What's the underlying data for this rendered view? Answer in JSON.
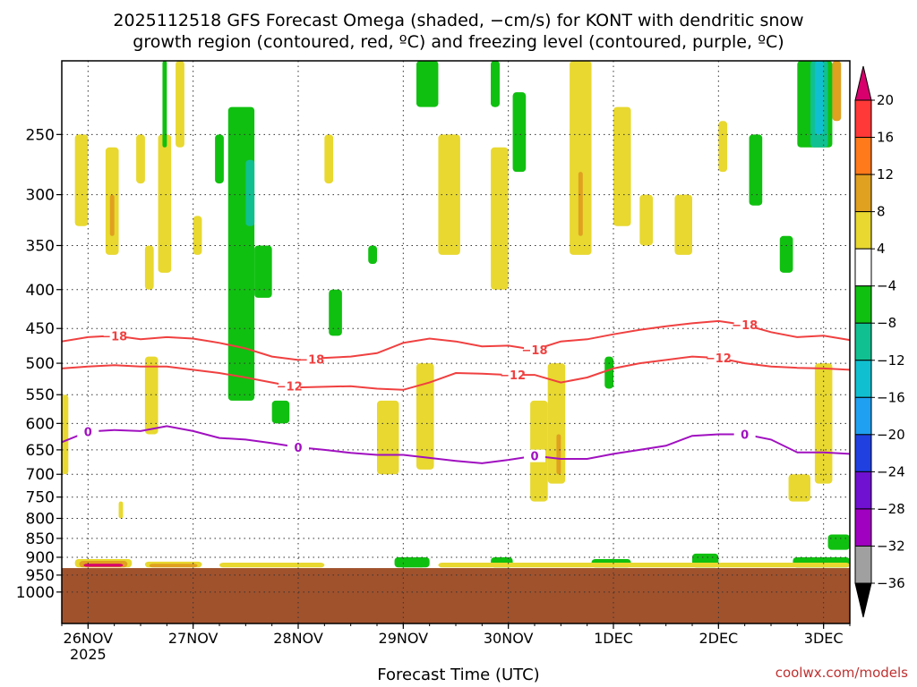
{
  "title_line1": "2025112518 GFS Forecast Omega (shaded, −cm/s) for KONT with dendritic snow",
  "title_line2": "growth region (contoured, red, ºC) and freezing level (contoured, purple, ºC)",
  "credit": "coolwx.com/models",
  "chart_data": {
    "type": "heatmap",
    "xlabel": "Forecast Time (UTC)",
    "x_ticks": [
      {
        "label": "26NOV",
        "sub": "2025",
        "hours": 6
      },
      {
        "label": "27NOV",
        "sub": "",
        "hours": 30
      },
      {
        "label": "28NOV",
        "sub": "",
        "hours": 54
      },
      {
        "label": "29NOV",
        "sub": "",
        "hours": 78
      },
      {
        "label": "30NOV",
        "sub": "",
        "hours": 102
      },
      {
        "label": "1DEC",
        "sub": "",
        "hours": 126
      },
      {
        "label": "2DEC",
        "sub": "",
        "hours": 150
      },
      {
        "label": "3DEC",
        "sub": "",
        "hours": 174
      }
    ],
    "x_range_hours": [
      0,
      180
    ],
    "y_scale": "log-pressure",
    "y_range": [
      1100,
      200
    ],
    "y_ticks": [
      250,
      300,
      350,
      400,
      450,
      500,
      550,
      600,
      650,
      700,
      750,
      800,
      850,
      900,
      950,
      1000
    ],
    "y_tick_labels": [
      "250",
      "300",
      "350",
      "400",
      "450",
      "500",
      "550",
      "600",
      "650",
      "700",
      "750",
      "800",
      "850",
      "900",
      "950",
      "1000"
    ],
    "surface_pressure": 930,
    "colorbar": {
      "labels": [
        "20",
        "16",
        "12",
        "8",
        "4",
        "−4",
        "−8",
        "−12",
        "−16",
        "−20",
        "−24",
        "−28",
        "−32",
        "−36"
      ],
      "colors": [
        "#d8006c",
        "#ff3838",
        "#ff7a1a",
        "#e0a020",
        "#e8d830",
        "#ffffff",
        "#10c010",
        "#10c090",
        "#10c0d0",
        "#20a0f0",
        "#2040e0",
        "#7010d0",
        "#a000c0",
        "#a0a0a0",
        "#000000"
      ]
    },
    "contours": [
      {
        "label": "-18",
        "color": "#f04040",
        "points": [
          [
            0,
            468
          ],
          [
            6,
            462
          ],
          [
            12,
            460
          ],
          [
            18,
            465
          ],
          [
            24,
            462
          ],
          [
            30,
            464
          ],
          [
            36,
            470
          ],
          [
            42,
            478
          ],
          [
            48,
            490
          ],
          [
            54,
            495
          ],
          [
            60,
            492
          ],
          [
            66,
            490
          ],
          [
            72,
            485
          ],
          [
            78,
            470
          ],
          [
            84,
            464
          ],
          [
            90,
            468
          ],
          [
            96,
            475
          ],
          [
            102,
            474
          ],
          [
            108,
            480
          ],
          [
            114,
            468
          ],
          [
            120,
            465
          ],
          [
            126,
            458
          ],
          [
            132,
            452
          ],
          [
            138,
            447
          ],
          [
            144,
            443
          ],
          [
            150,
            440
          ],
          [
            156,
            445
          ],
          [
            162,
            455
          ],
          [
            168,
            462
          ],
          [
            174,
            460
          ],
          [
            180,
            466
          ]
        ],
        "labels_at": [
          12,
          57,
          108,
          156
        ]
      },
      {
        "label": "-12",
        "color": "#f04040",
        "points": [
          [
            0,
            508
          ],
          [
            6,
            505
          ],
          [
            12,
            503
          ],
          [
            18,
            505
          ],
          [
            24,
            505
          ],
          [
            30,
            510
          ],
          [
            36,
            515
          ],
          [
            42,
            522
          ],
          [
            48,
            530
          ],
          [
            54,
            538
          ],
          [
            60,
            537
          ],
          [
            66,
            536
          ],
          [
            72,
            540
          ],
          [
            78,
            542
          ],
          [
            84,
            530
          ],
          [
            90,
            515
          ],
          [
            96,
            516
          ],
          [
            102,
            518
          ],
          [
            108,
            518
          ],
          [
            114,
            530
          ],
          [
            120,
            522
          ],
          [
            126,
            508
          ],
          [
            132,
            500
          ],
          [
            138,
            495
          ],
          [
            144,
            490
          ],
          [
            150,
            492
          ],
          [
            156,
            500
          ],
          [
            162,
            505
          ],
          [
            168,
            507
          ],
          [
            174,
            508
          ],
          [
            180,
            510
          ]
        ],
        "labels_at": [
          52,
          103,
          150
        ]
      },
      {
        "label": "0",
        "color": "#a010c0",
        "points": [
          [
            0,
            635
          ],
          [
            6,
            615
          ],
          [
            12,
            612
          ],
          [
            18,
            614
          ],
          [
            24,
            605
          ],
          [
            30,
            614
          ],
          [
            36,
            627
          ],
          [
            42,
            630
          ],
          [
            48,
            637
          ],
          [
            54,
            645
          ],
          [
            60,
            650
          ],
          [
            66,
            656
          ],
          [
            72,
            660
          ],
          [
            78,
            660
          ],
          [
            84,
            666
          ],
          [
            90,
            672
          ],
          [
            96,
            677
          ],
          [
            102,
            670
          ],
          [
            108,
            662
          ],
          [
            114,
            668
          ],
          [
            120,
            668
          ],
          [
            126,
            658
          ],
          [
            132,
            650
          ],
          [
            138,
            642
          ],
          [
            144,
            623
          ],
          [
            150,
            620
          ],
          [
            156,
            620
          ],
          [
            162,
            630
          ],
          [
            168,
            655
          ],
          [
            174,
            655
          ],
          [
            180,
            658
          ]
        ],
        "labels_at": [
          6,
          54,
          108,
          156
        ]
      }
    ],
    "omega_regions": [
      {
        "value": "4",
        "x": [
          0,
          1.5
        ],
        "p": [
          550,
          700
        ]
      },
      {
        "value": "4",
        "x": [
          3,
          6
        ],
        "p": [
          250,
          330
        ]
      },
      {
        "value": "4",
        "x": [
          10,
          13
        ],
        "p": [
          260,
          360
        ]
      },
      {
        "value": "4",
        "x": [
          17,
          19
        ],
        "p": [
          250,
          290
        ]
      },
      {
        "value": "4",
        "x": [
          19,
          21
        ],
        "p": [
          350,
          400
        ]
      },
      {
        "value": "4",
        "x": [
          13,
          14
        ],
        "p": [
          760,
          800
        ]
      },
      {
        "value": "4",
        "x": [
          19,
          22
        ],
        "p": [
          490,
          620
        ]
      },
      {
        "value": "4",
        "x": [
          22,
          25
        ],
        "p": [
          250,
          380
        ]
      },
      {
        "value": "4",
        "x": [
          26,
          28
        ],
        "p": [
          200,
          260
        ]
      },
      {
        "value": "4",
        "x": [
          30,
          32
        ],
        "p": [
          320,
          360
        ]
      },
      {
        "value": "8",
        "x": [
          11,
          12
        ],
        "p": [
          300,
          340
        ]
      },
      {
        "value": "-4",
        "x": [
          23,
          24
        ],
        "p": [
          200,
          260
        ]
      },
      {
        "value": "-4",
        "x": [
          35,
          37
        ],
        "p": [
          250,
          290
        ]
      },
      {
        "value": "-4",
        "x": [
          38,
          44
        ],
        "p": [
          230,
          560
        ]
      },
      {
        "value": "-8",
        "x": [
          44,
          48
        ],
        "p": [
          350,
          410
        ]
      },
      {
        "value": "-12",
        "x": [
          42,
          44
        ],
        "p": [
          270,
          330
        ]
      },
      {
        "value": "-4",
        "x": [
          48,
          52
        ],
        "p": [
          560,
          600
        ]
      },
      {
        "value": "4",
        "x": [
          60,
          62
        ],
        "p": [
          250,
          290
        ]
      },
      {
        "value": "-4",
        "x": [
          61,
          64
        ],
        "p": [
          400,
          460
        ]
      },
      {
        "value": "-4",
        "x": [
          70,
          72
        ],
        "p": [
          350,
          370
        ]
      },
      {
        "value": "4",
        "x": [
          72,
          77
        ],
        "p": [
          560,
          700
        ]
      },
      {
        "value": "4",
        "x": [
          81,
          85
        ],
        "p": [
          500,
          690
        ]
      },
      {
        "value": "-4",
        "x": [
          81,
          86
        ],
        "p": [
          200,
          230
        ]
      },
      {
        "value": "4",
        "x": [
          86,
          91
        ],
        "p": [
          250,
          360
        ]
      },
      {
        "value": "-4",
        "x": [
          98,
          100
        ],
        "p": [
          200,
          230
        ]
      },
      {
        "value": "-8",
        "x": [
          98,
          100
        ],
        "p": [
          200,
          230
        ]
      },
      {
        "value": "4",
        "x": [
          98,
          102
        ],
        "p": [
          260,
          400
        ]
      },
      {
        "value": "-4",
        "x": [
          103,
          106
        ],
        "p": [
          220,
          280
        ]
      },
      {
        "value": "4",
        "x": [
          107,
          111
        ],
        "p": [
          560,
          760
        ]
      },
      {
        "value": "4",
        "x": [
          111,
          115
        ],
        "p": [
          500,
          720
        ]
      },
      {
        "value": "8",
        "x": [
          113,
          114
        ],
        "p": [
          620,
          700
        ]
      },
      {
        "value": "4",
        "x": [
          116,
          121
        ],
        "p": [
          200,
          360
        ]
      },
      {
        "value": "8",
        "x": [
          118,
          119
        ],
        "p": [
          280,
          340
        ]
      },
      {
        "value": "-4",
        "x": [
          124,
          126
        ],
        "p": [
          490,
          540
        ]
      },
      {
        "value": "4",
        "x": [
          126,
          130
        ],
        "p": [
          230,
          330
        ]
      },
      {
        "value": "4",
        "x": [
          132,
          135
        ],
        "p": [
          300,
          350
        ]
      },
      {
        "value": "4",
        "x": [
          140,
          144
        ],
        "p": [
          300,
          360
        ]
      },
      {
        "value": "4",
        "x": [
          150,
          152
        ],
        "p": [
          240,
          280
        ]
      },
      {
        "value": "-4",
        "x": [
          157,
          160
        ],
        "p": [
          250,
          310
        ]
      },
      {
        "value": "-4",
        "x": [
          164,
          167
        ],
        "p": [
          340,
          380
        ]
      },
      {
        "value": "-4",
        "x": [
          168,
          176
        ],
        "p": [
          200,
          260
        ]
      },
      {
        "value": "-12",
        "x": [
          171,
          175
        ],
        "p": [
          200,
          260
        ]
      },
      {
        "value": "-16",
        "x": [
          172,
          174
        ],
        "p": [
          200,
          250
        ]
      },
      {
        "value": "8",
        "x": [
          176,
          178
        ],
        "p": [
          200,
          240
        ]
      },
      {
        "value": "4",
        "x": [
          166,
          171
        ],
        "p": [
          700,
          760
        ]
      },
      {
        "value": "4",
        "x": [
          172,
          176
        ],
        "p": [
          500,
          720
        ]
      },
      {
        "value": "-4",
        "x": [
          175,
          180
        ],
        "p": [
          840,
          880
        ]
      },
      {
        "value": "4",
        "x": [
          3,
          16
        ],
        "p": [
          905,
          928
        ]
      },
      {
        "value": "8",
        "x": [
          4,
          15
        ],
        "p": [
          910,
          928
        ]
      },
      {
        "value": "20",
        "x": [
          5,
          14
        ],
        "p": [
          918,
          926
        ]
      },
      {
        "value": "4",
        "x": [
          19,
          32
        ],
        "p": [
          912,
          928
        ]
      },
      {
        "value": "8",
        "x": [
          20,
          31
        ],
        "p": [
          918,
          928
        ]
      },
      {
        "value": "-4",
        "x": [
          76,
          84
        ],
        "p": [
          900,
          928
        ]
      },
      {
        "value": "-8",
        "x": [
          77,
          83
        ],
        "p": [
          910,
          928
        ]
      },
      {
        "value": "-4",
        "x": [
          98,
          103
        ],
        "p": [
          900,
          928
        ]
      },
      {
        "value": "-4",
        "x": [
          121,
          130
        ],
        "p": [
          905,
          928
        ]
      },
      {
        "value": "-4",
        "x": [
          144,
          150
        ],
        "p": [
          890,
          928
        ]
      },
      {
        "value": "-4",
        "x": [
          167,
          180
        ],
        "p": [
          900,
          928
        ]
      },
      {
        "value": "4",
        "x": [
          36,
          60
        ],
        "p": [
          915,
          928
        ]
      },
      {
        "value": "4",
        "x": [
          86,
          180
        ],
        "p": [
          915,
          928
        ]
      }
    ]
  }
}
